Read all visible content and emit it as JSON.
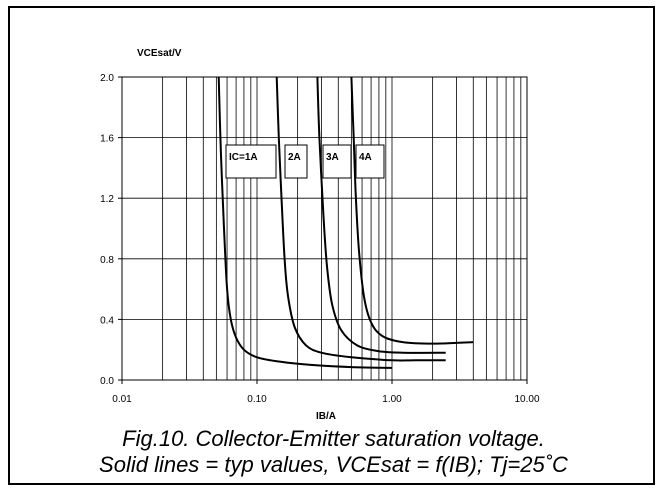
{
  "chart_data": {
    "type": "line",
    "x_scale": "log",
    "y_scale": "linear",
    "xlim": [
      0.01,
      10
    ],
    "ylim": [
      0,
      2.0
    ],
    "ylabel": "VCEsat/V",
    "xlabel": "IB/A",
    "x_ticks": [
      "0.01",
      "0.10",
      "1.00",
      "10.00"
    ],
    "y_ticks": [
      "0.0",
      "0.4",
      "0.8",
      "1.2",
      "1.6",
      "2.0"
    ],
    "grid": true,
    "series": [
      {
        "name": "IC=1A",
        "points": [
          [
            0.052,
            2.0
          ],
          [
            0.054,
            1.5
          ],
          [
            0.057,
            1.0
          ],
          [
            0.06,
            0.6
          ],
          [
            0.064,
            0.4
          ],
          [
            0.07,
            0.28
          ],
          [
            0.08,
            0.2
          ],
          [
            0.1,
            0.15
          ],
          [
            0.15,
            0.12
          ],
          [
            0.25,
            0.1
          ],
          [
            0.5,
            0.085
          ],
          [
            1.0,
            0.08
          ]
        ]
      },
      {
        "name": "2A",
        "points": [
          [
            0.14,
            2.0
          ],
          [
            0.145,
            1.6
          ],
          [
            0.152,
            1.2
          ],
          [
            0.16,
            0.8
          ],
          [
            0.17,
            0.55
          ],
          [
            0.19,
            0.35
          ],
          [
            0.23,
            0.23
          ],
          [
            0.3,
            0.18
          ],
          [
            0.5,
            0.15
          ],
          [
            1.0,
            0.13
          ],
          [
            1.5,
            0.13
          ],
          [
            2.5,
            0.13
          ]
        ]
      },
      {
        "name": "3A",
        "points": [
          [
            0.28,
            2.0
          ],
          [
            0.29,
            1.6
          ],
          [
            0.31,
            1.1
          ],
          [
            0.33,
            0.75
          ],
          [
            0.36,
            0.5
          ],
          [
            0.42,
            0.33
          ],
          [
            0.55,
            0.23
          ],
          [
            0.8,
            0.19
          ],
          [
            1.2,
            0.18
          ],
          [
            2.5,
            0.18
          ]
        ]
      },
      {
        "name": "4A",
        "points": [
          [
            0.5,
            2.0
          ],
          [
            0.52,
            1.6
          ],
          [
            0.54,
            1.2
          ],
          [
            0.57,
            0.85
          ],
          [
            0.62,
            0.55
          ],
          [
            0.7,
            0.38
          ],
          [
            0.85,
            0.29
          ],
          [
            1.2,
            0.25
          ],
          [
            2.0,
            0.24
          ],
          [
            4.0,
            0.25
          ]
        ]
      }
    ],
    "labels": [
      "IC=1A",
      "2A",
      "3A",
      "4A"
    ]
  },
  "caption": {
    "line1": "Fig.10.   Collector-Emitter saturation voltage.",
    "line2": "Solid lines = typ values, VCEsat = f(IB); Tj=25˚C"
  }
}
